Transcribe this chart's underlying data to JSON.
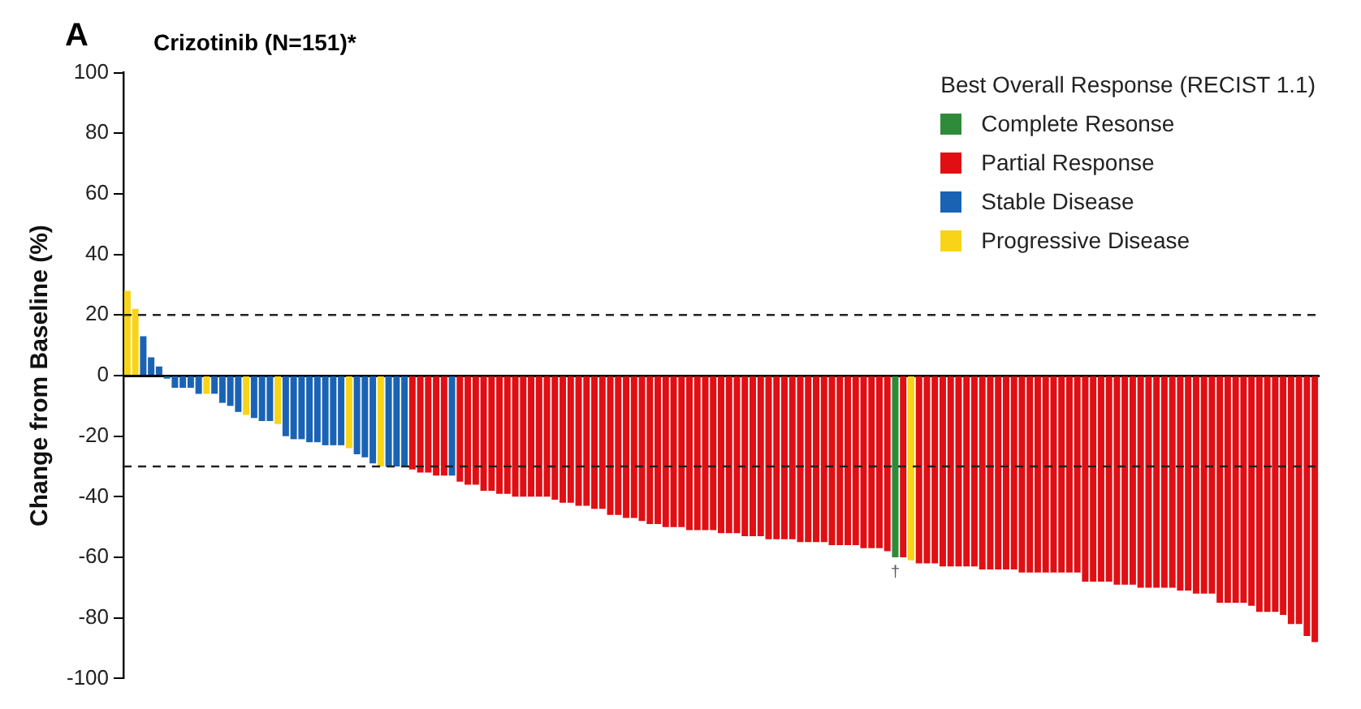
{
  "chart_data": {
    "type": "bar",
    "title": "Crizotinib (N=151)*",
    "ylabel": "Change from Baseline (%)",
    "legend_title": "Best Overall Response (RECIST 1.1)",
    "legend": "top right",
    "grid": false,
    "categories": [
      null,
      null,
      null,
      null,
      null,
      null,
      null,
      null,
      null,
      null,
      null,
      null,
      null,
      null,
      null,
      null,
      null,
      null,
      null,
      null,
      null,
      null,
      null,
      null,
      null,
      null,
      null,
      null,
      null,
      null,
      null,
      null,
      null,
      null,
      null,
      null,
      null,
      null,
      null,
      null,
      null,
      null,
      null,
      null,
      null,
      null,
      null,
      null,
      null,
      null,
      null,
      null,
      null,
      null,
      null,
      null,
      null,
      null,
      null,
      null,
      null,
      null,
      null,
      null,
      null,
      null,
      null,
      null,
      null,
      null,
      null,
      null,
      null,
      null,
      null,
      null,
      null,
      null,
      null,
      null,
      null,
      null,
      null,
      null,
      null,
      null,
      null,
      null,
      null,
      null,
      null,
      null,
      null,
      null,
      null,
      null,
      null,
      null,
      null,
      null,
      null,
      null,
      null,
      null,
      null,
      null,
      null,
      null,
      null,
      null,
      null,
      null,
      null,
      null,
      null,
      null,
      null,
      null,
      null,
      null,
      null,
      null,
      null,
      null,
      null,
      null,
      null,
      null,
      null,
      null,
      null,
      null,
      null,
      null,
      null,
      null,
      null,
      null,
      null,
      null,
      null,
      null,
      null,
      null,
      null,
      null,
      null,
      null,
      null,
      null,
      null
    ],
    "series": [
      {
        "name": "Complete Resonse",
        "color": "#2e8b3a",
        "values": [
          null,
          null,
          null,
          null,
          null,
          null,
          null,
          null,
          null,
          null,
          null,
          null,
          null,
          null,
          null,
          null,
          null,
          null,
          null,
          null,
          null,
          null,
          null,
          null,
          null,
          null,
          null,
          null,
          null,
          null,
          null,
          null,
          null,
          null,
          null,
          null,
          null,
          null,
          null,
          null,
          null,
          null,
          null,
          null,
          null,
          null,
          null,
          null,
          null,
          null,
          null,
          null,
          null,
          null,
          null,
          null,
          null,
          null,
          null,
          null,
          null,
          null,
          null,
          null,
          null,
          null,
          null,
          null,
          null,
          null,
          null,
          null,
          null,
          null,
          null,
          null,
          null,
          null,
          null,
          null,
          null,
          null,
          null,
          null,
          null,
          null,
          null,
          null,
          null,
          null,
          null,
          null,
          null,
          null,
          null,
          null,
          null,
          -60,
          null,
          null,
          null,
          null,
          null,
          null,
          null,
          null,
          null,
          null,
          null,
          null,
          null,
          null,
          null,
          null,
          null,
          null,
          null,
          null,
          null,
          null,
          null,
          null,
          null,
          null,
          null,
          null,
          null,
          null,
          null,
          null,
          null,
          null,
          null,
          null,
          null,
          null,
          null,
          null,
          null,
          null,
          null,
          null,
          null,
          null,
          null,
          null,
          null,
          null,
          null,
          null,
          null
        ]
      },
      {
        "name": "Partial Response",
        "color": "#e00f14",
        "values": [
          null,
          null,
          null,
          null,
          null,
          null,
          null,
          null,
          null,
          null,
          null,
          null,
          null,
          null,
          null,
          null,
          null,
          null,
          null,
          null,
          null,
          null,
          null,
          null,
          null,
          null,
          null,
          null,
          null,
          null,
          null,
          null,
          null,
          null,
          null,
          null,
          -31,
          -32,
          -32,
          -33,
          -33,
          null,
          -35,
          -36,
          -36,
          -38,
          -38,
          -39,
          -39,
          -40,
          -40,
          -40,
          -40,
          -40,
          -41,
          -42,
          -42,
          -43,
          -43,
          -44,
          -44,
          -46,
          -46,
          -47,
          -47,
          -48,
          -49,
          -49,
          -50,
          -50,
          -50,
          -51,
          -51,
          -51,
          -51,
          -52,
          -52,
          -52,
          -53,
          -53,
          -53,
          -54,
          -54,
          -54,
          -54,
          -55,
          -55,
          -55,
          -55,
          -56,
          -56,
          -56,
          -56,
          -57,
          -57,
          -57,
          -58,
          null,
          -60,
          null,
          -62,
          -62,
          -62,
          -63,
          -63,
          -63,
          -63,
          -63,
          -64,
          -64,
          -64,
          -64,
          -64,
          -65,
          -65,
          -65,
          -65,
          -65,
          -65,
          -65,
          -65,
          -68,
          -68,
          -68,
          -68,
          -69,
          -69,
          -69,
          -70,
          -70,
          -70,
          -70,
          -70,
          -71,
          -71,
          -72,
          -72,
          -72,
          -75,
          -75,
          -75,
          -75,
          -76,
          -78,
          -78,
          -78,
          -79,
          -82,
          -82,
          -86,
          -88
        ]
      },
      {
        "name": "Stable Disease",
        "color": "#1a63b4",
        "values": [
          null,
          null,
          13,
          6,
          3,
          -1,
          -4,
          -4,
          -4,
          -6,
          null,
          -6,
          -9,
          -10,
          -12,
          null,
          -14,
          -15,
          -15,
          null,
          -20,
          -21,
          -21,
          -22,
          -22,
          -23,
          -23,
          -23,
          null,
          -26,
          -27,
          -29,
          null,
          -30,
          -30,
          -30,
          null,
          null,
          null,
          null,
          null,
          -33,
          null,
          null,
          null,
          null,
          null,
          null,
          null,
          null,
          null,
          null,
          null,
          null,
          null,
          null,
          null,
          null,
          null,
          null,
          null,
          null,
          null,
          null,
          null,
          null,
          null,
          null,
          null,
          null,
          null,
          null,
          null,
          null,
          null,
          null,
          null,
          null,
          null,
          null,
          null,
          null,
          null,
          null,
          null,
          null,
          null,
          null,
          null,
          null,
          null,
          null,
          null,
          null,
          null,
          null,
          null,
          null,
          null,
          null,
          null,
          null,
          null,
          null,
          null,
          null,
          null,
          null,
          null,
          null,
          null,
          null,
          null,
          null,
          null,
          null,
          null,
          null,
          null,
          null,
          null,
          null,
          null,
          null,
          null,
          null,
          null,
          null,
          null,
          null,
          null,
          null,
          null,
          null,
          null,
          null,
          null,
          null,
          null,
          null,
          null,
          null,
          null,
          null,
          null,
          null,
          null,
          null,
          null,
          null,
          null
        ]
      },
      {
        "name": "Progressive Disease",
        "color": "#f7d417",
        "values": [
          28,
          22,
          null,
          null,
          null,
          null,
          null,
          null,
          null,
          null,
          -6,
          null,
          null,
          null,
          null,
          -13,
          null,
          null,
          null,
          -16,
          null,
          null,
          null,
          null,
          null,
          null,
          null,
          null,
          -24,
          null,
          null,
          null,
          -30,
          null,
          null,
          null,
          null,
          null,
          null,
          null,
          null,
          null,
          null,
          null,
          null,
          null,
          null,
          null,
          null,
          null,
          null,
          null,
          null,
          null,
          null,
          null,
          null,
          null,
          null,
          null,
          null,
          null,
          null,
          null,
          null,
          null,
          null,
          null,
          null,
          null,
          null,
          null,
          null,
          null,
          null,
          null,
          null,
          null,
          null,
          null,
          null,
          null,
          null,
          null,
          null,
          null,
          null,
          null,
          null,
          null,
          null,
          null,
          null,
          null,
          null,
          null,
          null,
          null,
          null,
          -61,
          null,
          null,
          null,
          null,
          null,
          null,
          null,
          null,
          null,
          null,
          null,
          null,
          null,
          null,
          null,
          null,
          null,
          null,
          null,
          null,
          null,
          null,
          null,
          null,
          null,
          null,
          null,
          null,
          null,
          null,
          null,
          null,
          null,
          null,
          null,
          null,
          null,
          null,
          null,
          null,
          null,
          null,
          null,
          null,
          null,
          null,
          null,
          null,
          null,
          null,
          null
        ]
      }
    ],
    "ylim": [
      -100,
      100
    ],
    "yticks": [
      -100,
      -80,
      -60,
      -40,
      -20,
      0,
      20,
      40,
      60,
      80,
      100
    ],
    "ref_lines": [
      {
        "axis": "y",
        "value": 20,
        "line_style": "dashed"
      },
      {
        "axis": "y",
        "value": -30,
        "line_style": "dashed"
      }
    ],
    "annotations": [
      "A",
      "†"
    ]
  }
}
